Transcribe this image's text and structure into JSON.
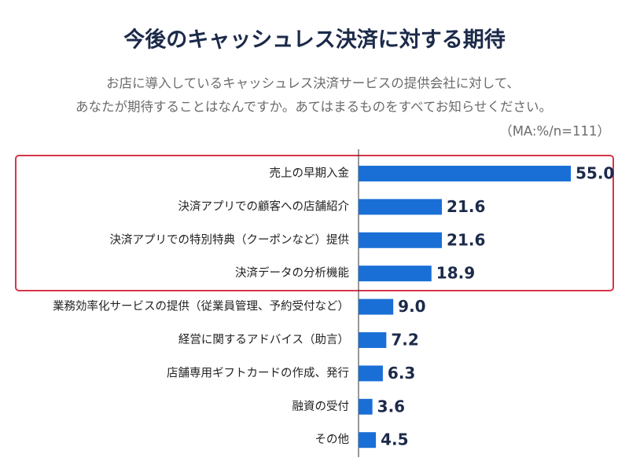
{
  "chart_data": {
    "type": "bar",
    "orientation": "horizontal",
    "title": "今後のキャッシュレス決済に対する期待",
    "subtitle": [
      "お店に導入しているキャッシュレス決済サービスの提供会社に対して、",
      "あなたが期待することはなんですか。あてはまるものをすべてお知らせください。"
    ],
    "note": "（MA:%/n=111）",
    "categories": [
      "売上の早期入金",
      "決済アプリでの顧客への店舗紹介",
      "決済アプリでの特別特典（クーポンなど）提供",
      "決済データの分析機能",
      "業務効率化サービスの提供（従業員管理、予約受付など）",
      "経営に関するアドバイス（助言）",
      "店舗専用ギフトカードの作成、発行",
      "融資の受付",
      "その他"
    ],
    "values": [
      55.0,
      21.6,
      21.6,
      18.9,
      9.0,
      7.2,
      6.3,
      3.6,
      4.5
    ],
    "value_labels": [
      "55.0",
      "21.6",
      "21.6",
      "18.9",
      "9.0",
      "7.2",
      "6.3",
      "3.6",
      "4.5"
    ],
    "color": "#1a6fd6"
  }
}
